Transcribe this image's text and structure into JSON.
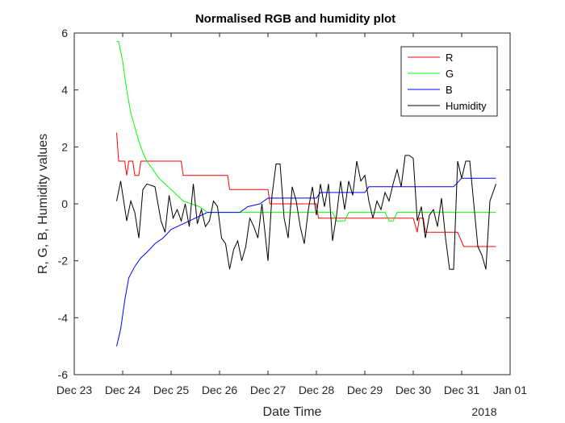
{
  "chart_data": {
    "type": "line",
    "title": "Normalised RGB and humidity plot",
    "xlabel": "Date Time",
    "ylabel": "R, G, B, Humidity values",
    "x_year_label": "2018",
    "x_is_date": true,
    "xlim": [
      "2017-12-23",
      "2018-01-01"
    ],
    "ylim": [
      -6,
      6
    ],
    "x_ticks": [
      {
        "date": "2017-12-23",
        "label": "Dec 23"
      },
      {
        "date": "2017-12-24",
        "label": "Dec 24"
      },
      {
        "date": "2017-12-25",
        "label": "Dec 25"
      },
      {
        "date": "2017-12-26",
        "label": "Dec 26"
      },
      {
        "date": "2017-12-27",
        "label": "Dec 27"
      },
      {
        "date": "2017-12-28",
        "label": "Dec 28"
      },
      {
        "date": "2017-12-29",
        "label": "Dec 29"
      },
      {
        "date": "2017-12-30",
        "label": "Dec 30"
      },
      {
        "date": "2017-12-31",
        "label": "Dec 31"
      },
      {
        "date": "2018-01-01",
        "label": "Jan 01"
      }
    ],
    "y_ticks": [
      {
        "value": -6,
        "label": "-6"
      },
      {
        "value": -4,
        "label": "-4"
      },
      {
        "value": -2,
        "label": "-2"
      },
      {
        "value": 0,
        "label": "0"
      },
      {
        "value": 2,
        "label": "2"
      },
      {
        "value": 4,
        "label": "4"
      },
      {
        "value": 6,
        "label": "6"
      }
    ],
    "grid": false,
    "legend_position": "top-right",
    "series": [
      {
        "name": "R",
        "color": "#ff0000",
        "points": [
          [
            "2017-12-23 21:00",
            2.5
          ],
          [
            "2017-12-23 22:00",
            1.5
          ],
          [
            "2017-12-24 01:00",
            1.5
          ],
          [
            "2017-12-24 02:00",
            1.0
          ],
          [
            "2017-12-24 03:00",
            1.5
          ],
          [
            "2017-12-24 05:00",
            1.5
          ],
          [
            "2017-12-24 06:00",
            1.0
          ],
          [
            "2017-12-24 08:00",
            1.0
          ],
          [
            "2017-12-24 09:00",
            1.5
          ],
          [
            "2017-12-25 05:00",
            1.5
          ],
          [
            "2017-12-25 06:00",
            1.0
          ],
          [
            "2017-12-26 04:00",
            1.0
          ],
          [
            "2017-12-26 05:00",
            0.5
          ],
          [
            "2017-12-27 00:00",
            0.5
          ],
          [
            "2017-12-27 01:00",
            0.0
          ],
          [
            "2017-12-28 00:00",
            0.0
          ],
          [
            "2017-12-28 01:00",
            -0.5
          ],
          [
            "2017-12-30 00:00",
            -0.5
          ],
          [
            "2017-12-30 02:00",
            -1.0
          ],
          [
            "2017-12-30 03:00",
            -0.5
          ],
          [
            "2017-12-30 05:00",
            -0.5
          ],
          [
            "2017-12-30 06:00",
            -1.0
          ],
          [
            "2017-12-30 22:00",
            -1.0
          ],
          [
            "2017-12-31 01:00",
            -1.5
          ],
          [
            "2017-12-31 17:00",
            -1.5
          ]
        ]
      },
      {
        "name": "G",
        "color": "#00ff00",
        "points": [
          [
            "2017-12-23 21:00",
            5.7
          ],
          [
            "2017-12-23 22:00",
            5.7
          ],
          [
            "2017-12-24 00:00",
            5.0
          ],
          [
            "2017-12-24 02:00",
            4.0
          ],
          [
            "2017-12-24 04:00",
            3.2
          ],
          [
            "2017-12-24 06:00",
            2.7
          ],
          [
            "2017-12-24 08:00",
            2.2
          ],
          [
            "2017-12-24 10:00",
            1.8
          ],
          [
            "2017-12-24 12:00",
            1.5
          ],
          [
            "2017-12-24 15:00",
            1.2
          ],
          [
            "2017-12-24 18:00",
            0.9
          ],
          [
            "2017-12-24 21:00",
            0.7
          ],
          [
            "2017-12-25 00:00",
            0.5
          ],
          [
            "2017-12-25 03:00",
            0.3
          ],
          [
            "2017-12-25 06:00",
            0.1
          ],
          [
            "2017-12-25 10:00",
            0.0
          ],
          [
            "2017-12-25 14:00",
            -0.1
          ],
          [
            "2017-12-25 18:00",
            -0.3
          ],
          [
            "2017-12-28 00:00",
            -0.3
          ],
          [
            "2017-12-28 08:00",
            -0.3
          ],
          [
            "2017-12-28 10:00",
            -0.6
          ],
          [
            "2017-12-28 14:00",
            -0.6
          ],
          [
            "2017-12-28 16:00",
            -0.3
          ],
          [
            "2017-12-29 10:00",
            -0.3
          ],
          [
            "2017-12-29 12:00",
            -0.6
          ],
          [
            "2017-12-29 14:00",
            -0.6
          ],
          [
            "2017-12-29 16:00",
            -0.3
          ],
          [
            "2017-12-31 17:00",
            -0.3
          ]
        ]
      },
      {
        "name": "B",
        "color": "#0000ff",
        "points": [
          [
            "2017-12-23 21:00",
            -5.0
          ],
          [
            "2017-12-23 23:00",
            -4.4
          ],
          [
            "2017-12-24 01:00",
            -3.4
          ],
          [
            "2017-12-24 03:00",
            -2.6
          ],
          [
            "2017-12-24 06:00",
            -2.2
          ],
          [
            "2017-12-24 09:00",
            -1.9
          ],
          [
            "2017-12-24 12:00",
            -1.7
          ],
          [
            "2017-12-24 16:00",
            -1.4
          ],
          [
            "2017-12-24 20:00",
            -1.2
          ],
          [
            "2017-12-25 00:00",
            -0.9
          ],
          [
            "2017-12-25 06:00",
            -0.7
          ],
          [
            "2017-12-25 12:00",
            -0.5
          ],
          [
            "2017-12-25 18:00",
            -0.3
          ],
          [
            "2017-12-26 10:00",
            -0.3
          ],
          [
            "2017-12-26 14:00",
            -0.1
          ],
          [
            "2017-12-26 20:00",
            0.0
          ],
          [
            "2017-12-27 00:00",
            0.2
          ],
          [
            "2017-12-28 00:00",
            0.2
          ],
          [
            "2017-12-28 02:00",
            0.4
          ],
          [
            "2017-12-29 00:00",
            0.4
          ],
          [
            "2017-12-29 02:00",
            0.6
          ],
          [
            "2017-12-30 20:00",
            0.6
          ],
          [
            "2017-12-31 00:00",
            0.9
          ],
          [
            "2017-12-31 17:00",
            0.9
          ]
        ]
      },
      {
        "name": "Humidity",
        "color": "#000000",
        "points": [
          [
            "2017-12-23 21:00",
            0.1
          ],
          [
            "2017-12-23 23:00",
            0.8
          ],
          [
            "2017-12-24 02:00",
            -0.6
          ],
          [
            "2017-12-24 04:00",
            0.1
          ],
          [
            "2017-12-24 06:00",
            -0.3
          ],
          [
            "2017-12-24 08:00",
            -1.2
          ],
          [
            "2017-12-24 10:00",
            0.5
          ],
          [
            "2017-12-24 12:00",
            0.7
          ],
          [
            "2017-12-24 16:00",
            0.6
          ],
          [
            "2017-12-24 19:00",
            -0.6
          ],
          [
            "2017-12-24 21:00",
            -1.0
          ],
          [
            "2017-12-24 23:00",
            0.3
          ],
          [
            "2017-12-25 01:00",
            -0.5
          ],
          [
            "2017-12-25 03:00",
            -0.2
          ],
          [
            "2017-12-25 05:00",
            -0.6
          ],
          [
            "2017-12-25 07:00",
            0.0
          ],
          [
            "2017-12-25 09:00",
            -0.8
          ],
          [
            "2017-12-25 11:00",
            0.7
          ],
          [
            "2017-12-25 13:00",
            -0.7
          ],
          [
            "2017-12-25 15:00",
            -0.2
          ],
          [
            "2017-12-25 17:00",
            -0.8
          ],
          [
            "2017-12-25 19:00",
            -0.6
          ],
          [
            "2017-12-25 21:00",
            0.1
          ],
          [
            "2017-12-25 23:00",
            -0.1
          ],
          [
            "2017-12-26 01:00",
            -1.2
          ],
          [
            "2017-12-26 03:00",
            -1.4
          ],
          [
            "2017-12-26 05:00",
            -2.3
          ],
          [
            "2017-12-26 07:00",
            -1.6
          ],
          [
            "2017-12-26 09:00",
            -1.3
          ],
          [
            "2017-12-26 11:00",
            -2.0
          ],
          [
            "2017-12-26 13:00",
            -1.5
          ],
          [
            "2017-12-26 15:00",
            -0.5
          ],
          [
            "2017-12-26 17:00",
            -0.8
          ],
          [
            "2017-12-26 19:00",
            -1.2
          ],
          [
            "2017-12-26 21:00",
            0.0
          ],
          [
            "2017-12-27 00:00",
            -2.0
          ],
          [
            "2017-12-27 02:00",
            0.3
          ],
          [
            "2017-12-27 04:00",
            1.4
          ],
          [
            "2017-12-27 06:00",
            1.4
          ],
          [
            "2017-12-27 08:00",
            -0.5
          ],
          [
            "2017-12-27 10:00",
            -1.2
          ],
          [
            "2017-12-27 12:00",
            0.6
          ],
          [
            "2017-12-27 14:00",
            0.1
          ],
          [
            "2017-12-27 16:00",
            -0.8
          ],
          [
            "2017-12-27 18:00",
            -1.4
          ],
          [
            "2017-12-27 20:00",
            -0.2
          ],
          [
            "2017-12-27 22:00",
            0.6
          ],
          [
            "2017-12-28 00:00",
            -0.4
          ],
          [
            "2017-12-28 02:00",
            0.7
          ],
          [
            "2017-12-28 04:00",
            -0.1
          ],
          [
            "2017-12-28 06:00",
            0.7
          ],
          [
            "2017-12-28 08:00",
            -1.3
          ],
          [
            "2017-12-28 10:00",
            -0.4
          ],
          [
            "2017-12-28 12:00",
            0.8
          ],
          [
            "2017-12-28 14:00",
            -0.2
          ],
          [
            "2017-12-28 16:00",
            0.8
          ],
          [
            "2017-12-28 18:00",
            0.3
          ],
          [
            "2017-12-28 20:00",
            1.5
          ],
          [
            "2017-12-28 22:00",
            0.8
          ],
          [
            "2017-12-29 00:00",
            1.0
          ],
          [
            "2017-12-29 02:00",
            0.1
          ],
          [
            "2017-12-29 04:00",
            -0.5
          ],
          [
            "2017-12-29 06:00",
            0.1
          ],
          [
            "2017-12-29 08:00",
            -0.2
          ],
          [
            "2017-12-29 10:00",
            0.4
          ],
          [
            "2017-12-29 12:00",
            0.1
          ],
          [
            "2017-12-29 14:00",
            0.7
          ],
          [
            "2017-12-29 16:00",
            1.2
          ],
          [
            "2017-12-29 18:00",
            0.6
          ],
          [
            "2017-12-29 20:00",
            1.7
          ],
          [
            "2017-12-29 22:00",
            1.7
          ],
          [
            "2017-12-30 00:00",
            1.6
          ],
          [
            "2017-12-30 02:00",
            -0.6
          ],
          [
            "2017-12-30 04:00",
            -0.1
          ],
          [
            "2017-12-30 06:00",
            -1.2
          ],
          [
            "2017-12-30 08:00",
            -0.4
          ],
          [
            "2017-12-30 10:00",
            -0.2
          ],
          [
            "2017-12-30 12:00",
            -0.8
          ],
          [
            "2017-12-30 14:00",
            0.2
          ],
          [
            "2017-12-30 16:00",
            -1.2
          ],
          [
            "2017-12-30 18:00",
            -2.3
          ],
          [
            "2017-12-30 20:00",
            -2.3
          ],
          [
            "2017-12-30 22:00",
            1.5
          ],
          [
            "2017-12-31 00:00",
            0.9
          ],
          [
            "2017-12-31 02:00",
            1.5
          ],
          [
            "2017-12-31 04:00",
            1.5
          ],
          [
            "2017-12-31 06:00",
            0.0
          ],
          [
            "2017-12-31 08:00",
            -1.5
          ],
          [
            "2017-12-31 10:00",
            -1.8
          ],
          [
            "2017-12-31 12:00",
            -2.3
          ],
          [
            "2017-12-31 14:00",
            0.1
          ],
          [
            "2017-12-31 17:00",
            0.7
          ]
        ]
      }
    ]
  }
}
